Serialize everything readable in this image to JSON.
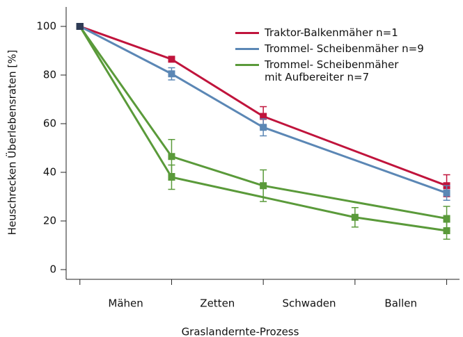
{
  "chart_data": {
    "type": "line",
    "xlabel": "Graslandernte-Prozess",
    "ylabel": "Heuschrecken Überlebensraten [%]",
    "categories": [
      "Mähen",
      "Zetten",
      "Schwaden",
      "Ballen"
    ],
    "xticks": [
      0,
      1,
      2,
      3,
      4
    ],
    "xlim": [
      -0.15,
      4.14
    ],
    "ylim": [
      -4,
      108
    ],
    "yticks": [
      0,
      20,
      40,
      60,
      80,
      100
    ],
    "legend": "upper right",
    "series": [
      {
        "name": "Traktor-Balkenmäher n=1",
        "color": "#c0143c",
        "x": [
          0,
          1,
          2,
          4
        ],
        "values": [
          100,
          86.5,
          63,
          34.5
        ],
        "errors": [
          null,
          null,
          4,
          4.5
        ]
      },
      {
        "name": "Trommel- Scheibenmäher n=9",
        "color": "#5b87b5",
        "x": [
          0,
          1,
          2,
          4
        ],
        "values": [
          100,
          80.5,
          58.5,
          31.5
        ],
        "errors": [
          null,
          2.5,
          3.5,
          3
        ]
      },
      {
        "name": "Trommel- Scheibenmäher\nmit Aufbereiter n=7",
        "color": "#5a9a3a",
        "x": [
          0,
          1,
          2,
          4
        ],
        "values": [
          100,
          46.5,
          34.5,
          21
        ],
        "errors": [
          null,
          7,
          6.5,
          5
        ]
      },
      {
        "color": "#5a9a3a",
        "x": [
          0,
          1,
          3,
          4
        ],
        "values": [
          100,
          38,
          21.5,
          16
        ],
        "errors": [
          null,
          5,
          4,
          3.5
        ]
      }
    ]
  }
}
